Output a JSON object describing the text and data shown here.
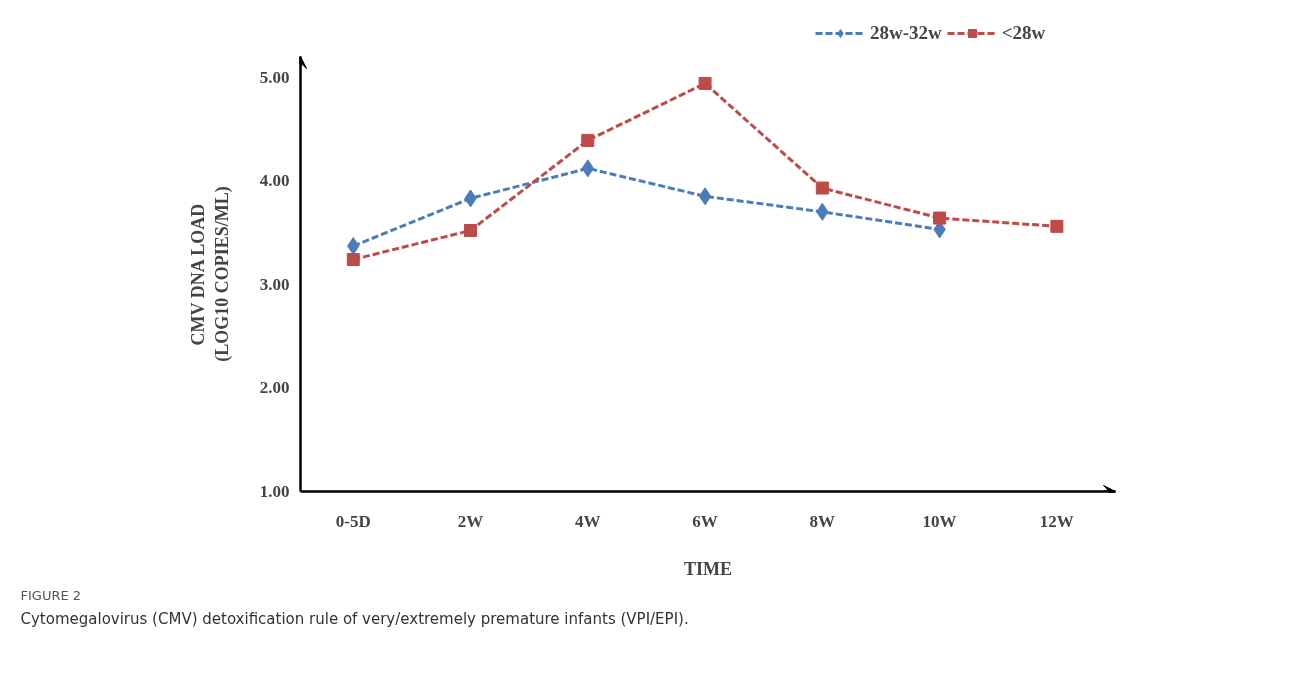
{
  "chart_data": {
    "type": "line",
    "xlabel": "TIME",
    "ylabel": "CMV DNA LOAD\n(LOG10 COPIES/ML)",
    "categories": [
      "0-5D",
      "2W",
      "4W",
      "6W",
      "8W",
      "10W",
      "12W"
    ],
    "series": [
      {
        "name": "28w-32w",
        "color": "#4a7ebb",
        "marker": "diamond",
        "values": [
          3.37,
          3.83,
          4.12,
          3.85,
          3.7,
          3.53,
          null
        ]
      },
      {
        "name": "<28w",
        "color": "#be4b48",
        "marker": "square",
        "values": [
          3.24,
          3.52,
          4.39,
          4.94,
          3.93,
          3.64,
          3.56
        ]
      }
    ],
    "ylim": [
      1,
      5.2
    ],
    "yticks": [
      {
        "value": 1,
        "label": "1.00"
      },
      {
        "value": 2,
        "label": "2.00"
      },
      {
        "value": 3,
        "label": "3.00"
      },
      {
        "value": 4,
        "label": "4.00"
      },
      {
        "value": 5,
        "label": "5.00"
      }
    ],
    "grid": false,
    "legend": "top",
    "line_style": "dashed",
    "annotations": [
      "FIGURE 2",
      "Cytomegalovirus (CMV) detoxification rule of very/extremely premature infants (VPI/EPI)."
    ]
  }
}
